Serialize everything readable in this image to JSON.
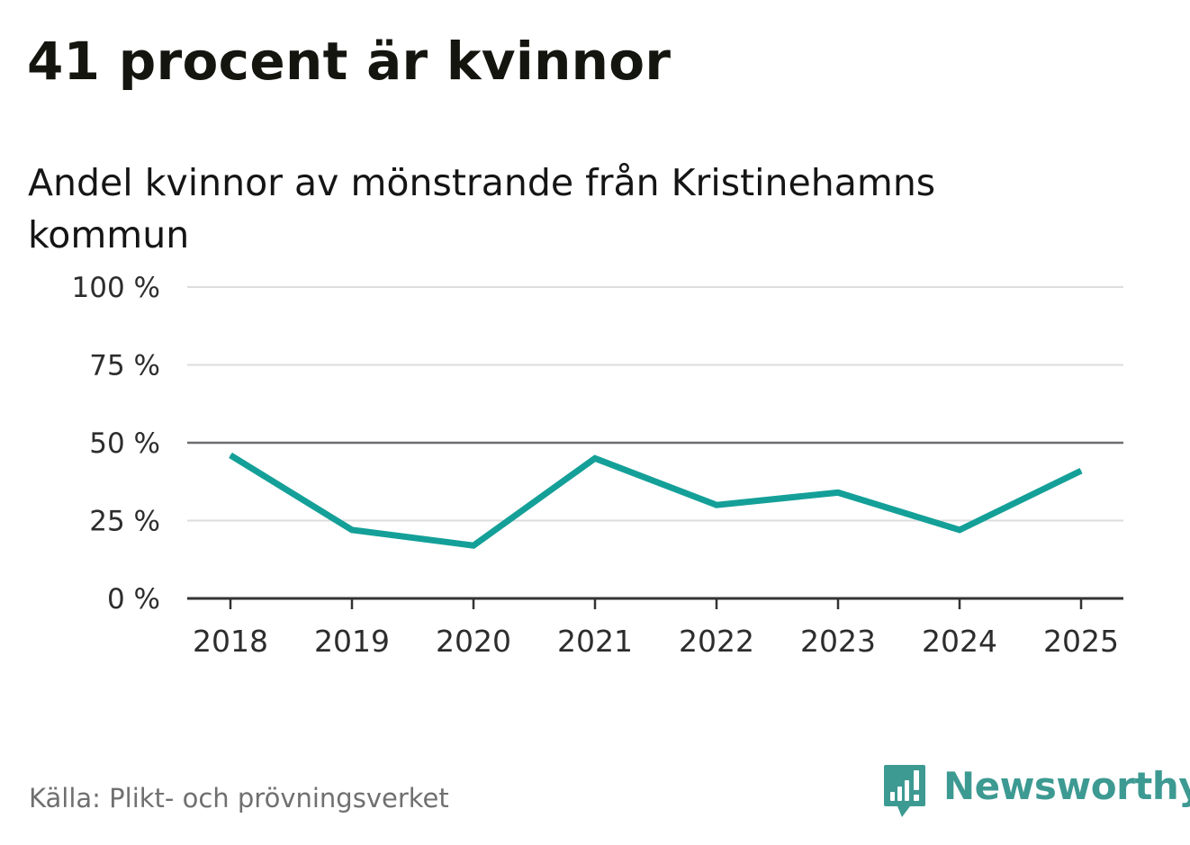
{
  "header": {
    "title": "41 procent är kvinnor",
    "subtitle": "Andel kvinnor av mönstrande från Kristinehamns kommun"
  },
  "footer": {
    "source": "Källa: Plikt- och prövningsverket",
    "brand": "Newsworthy"
  },
  "colors": {
    "line": "#14a098",
    "grid": "#dddddd",
    "reference": "#6d6d72",
    "axis": "#333333",
    "brand": "#3d9a92"
  },
  "chart_data": {
    "type": "line",
    "title": "41 procent är kvinnor",
    "subtitle": "Andel kvinnor av mönstrande från Kristinehamns kommun",
    "xlabel": "",
    "ylabel": "",
    "categories": [
      "2018",
      "2019",
      "2020",
      "2021",
      "2022",
      "2023",
      "2024",
      "2025"
    ],
    "series": [
      {
        "name": "Andel kvinnor",
        "values": [
          46,
          22,
          17,
          45,
          30,
          34,
          22,
          41
        ]
      }
    ],
    "ylim": [
      0,
      100
    ],
    "yticks": [
      0,
      25,
      50,
      75,
      100
    ],
    "ytick_labels": [
      "0 %",
      "25 %",
      "50 %",
      "75 %",
      "100 %"
    ],
    "reference_line": 50,
    "grid": true,
    "legend": "none"
  }
}
